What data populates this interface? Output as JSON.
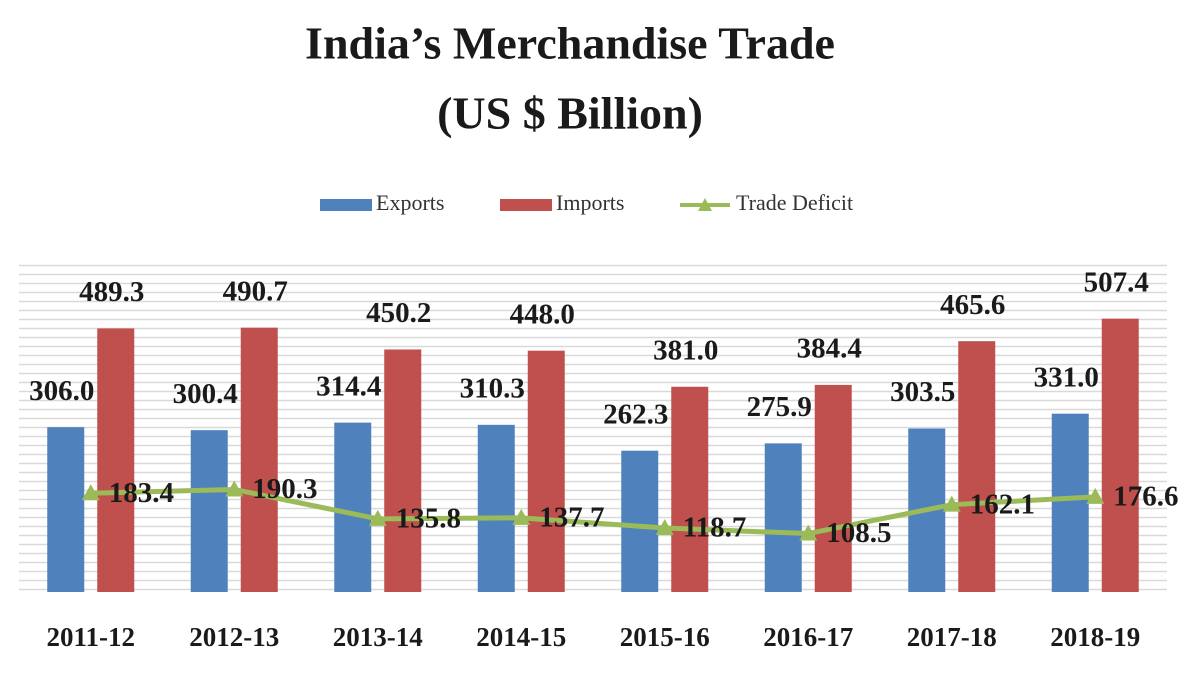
{
  "chart_data": {
    "type": "bar",
    "title": "India’s Merchandise Trade",
    "subtitle": "(US $ Billion)",
    "categories": [
      "2011-12",
      "2012-13",
      "2013-14",
      "2014-15",
      "2015-16",
      "2016-17",
      "2017-18",
      "2018-19"
    ],
    "series": [
      {
        "name": "Exports",
        "color": "#4f81bd",
        "type": "bar",
        "values": [
          306.0,
          300.4,
          314.4,
          310.3,
          262.3,
          275.9,
          303.5,
          331.0
        ],
        "value_labels": [
          "306.0",
          "300.4",
          "314.4",
          "310.3",
          "262.3",
          "275.9",
          "303.5",
          "331.0"
        ]
      },
      {
        "name": "Imports",
        "color": "#c0504d",
        "type": "bar",
        "values": [
          489.3,
          490.7,
          450.2,
          448.0,
          381.0,
          384.4,
          465.6,
          507.4
        ],
        "value_labels": [
          "489.3",
          "490.7",
          "450.2",
          "448.0",
          "381.0",
          "384.4",
          "465.6",
          "507.4"
        ]
      },
      {
        "name": "Trade Deficit",
        "color": "#9bbb59",
        "type": "line",
        "values": [
          183.4,
          190.3,
          135.8,
          137.7,
          118.7,
          108.5,
          162.1,
          176.6
        ],
        "value_labels": [
          "183.4",
          "190.3",
          "135.8",
          "137.7",
          "118.7",
          "108.5",
          "162.1",
          "176.6"
        ]
      }
    ],
    "ylim": [
      0,
      620
    ],
    "legend": "top"
  }
}
